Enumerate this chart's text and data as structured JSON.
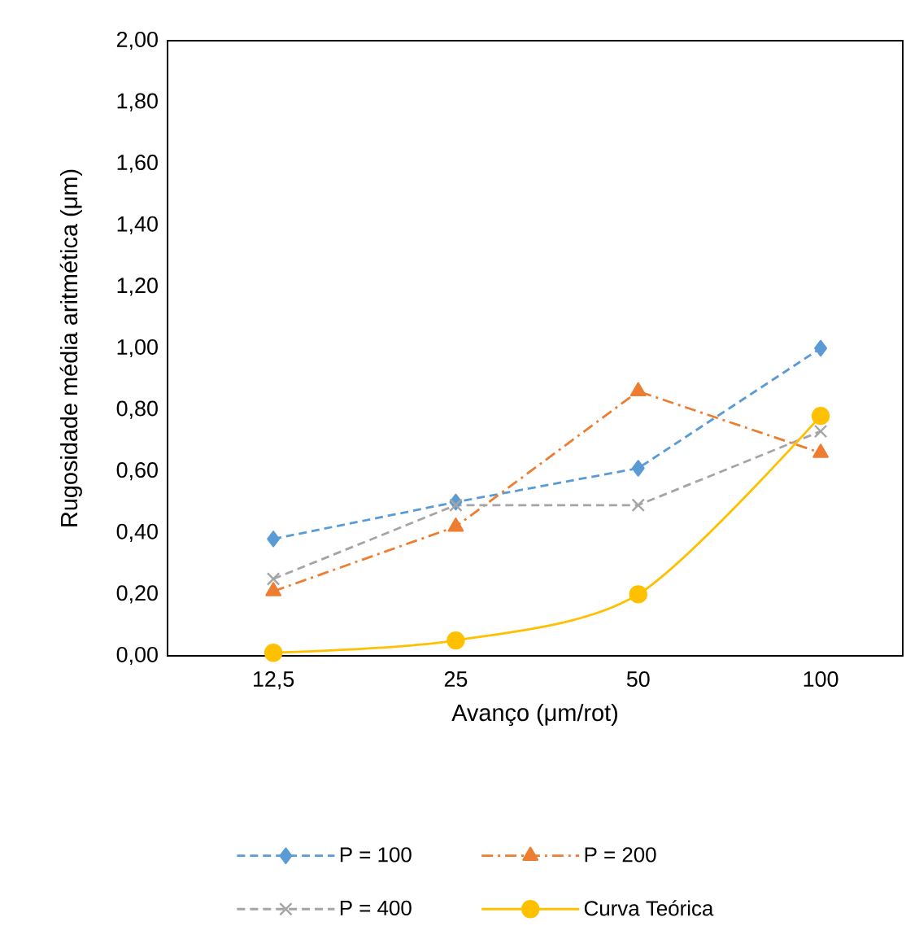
{
  "chart_data": {
    "type": "line",
    "xlabel": "Avanço (μm/rot)",
    "ylabel": "Rugosidade média aritmética (μm)",
    "categories": [
      "12,5",
      "25",
      "50",
      "100"
    ],
    "series": [
      {
        "name": "P = 100",
        "color": "#5b9bd5",
        "values": [
          0.38,
          0.5,
          0.61,
          1.0
        ],
        "marker": "diamond",
        "line_style": "dashed"
      },
      {
        "name": "P = 200",
        "color": "#ed7d31",
        "values": [
          0.21,
          0.42,
          0.86,
          0.66
        ],
        "marker": "triangle",
        "line_style": "dashdot"
      },
      {
        "name": "P = 400",
        "color": "#a5a5a5",
        "values": [
          0.25,
          0.49,
          0.49,
          0.73
        ],
        "marker": "cross",
        "line_style": "dashed"
      },
      {
        "name": "Curva Teórica",
        "color": "#ffc000",
        "values": [
          0.01,
          0.05,
          0.2,
          0.78
        ],
        "marker": "circle",
        "line_style": "solid"
      }
    ],
    "ylim": [
      0,
      2
    ],
    "yticks": [
      {
        "value": 0,
        "label": "0,00"
      },
      {
        "value": 0.2,
        "label": "0,20"
      },
      {
        "value": 0.4,
        "label": "0,40"
      },
      {
        "value": 0.6,
        "label": "0,60"
      },
      {
        "value": 0.8,
        "label": "0,80"
      },
      {
        "value": 1.0,
        "label": "1,00"
      },
      {
        "value": 1.2,
        "label": "1,20"
      },
      {
        "value": 1.4,
        "label": "1,40"
      },
      {
        "value": 1.6,
        "label": "1,60"
      },
      {
        "value": 1.8,
        "label": "1,80"
      },
      {
        "value": 2.0,
        "label": "2,00"
      }
    ],
    "grid": false,
    "legend": "bottom"
  }
}
